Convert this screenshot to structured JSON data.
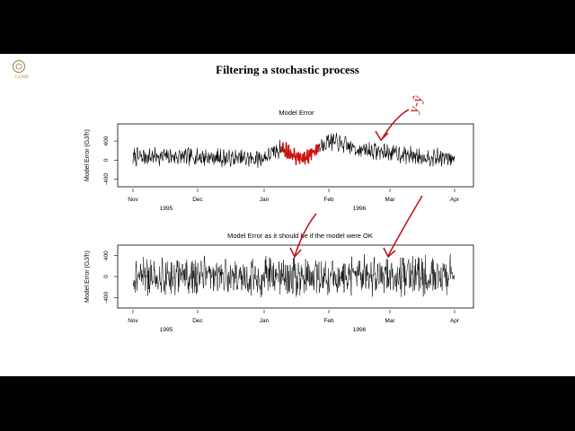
{
  "slide": {
    "title": "Filtering a stochastic process",
    "logo_label": "LUND",
    "annotation": "y-ŷ"
  },
  "chart_data": [
    {
      "type": "line",
      "title": "Model Error",
      "ylabel": "Model Error (GJ/h)",
      "yticks": [
        -400,
        0,
        400
      ],
      "ylim": [
        -560,
        760
      ],
      "xticks": [
        "Nov",
        "Dec",
        "Jan",
        "Feb",
        "Mar",
        "Apr"
      ],
      "xyears": [
        "1995",
        "1996"
      ],
      "xrange": [
        "1995-11-01",
        "1996-04-01"
      ],
      "series": [
        {
          "values_by_half_month": [
            {
              "x": "1995-11-01",
              "y": 60
            },
            {
              "x": "1995-11-15",
              "y": 80
            },
            {
              "x": "1995-12-01",
              "y": 70
            },
            {
              "x": "1995-12-15",
              "y": 40
            },
            {
              "x": "1996-01-01",
              "y": 30
            },
            {
              "x": "1996-01-10",
              "y": 250
            },
            {
              "x": "1996-01-20",
              "y": 10
            },
            {
              "x": "1996-02-01",
              "y": 420
            },
            {
              "x": "1996-02-15",
              "y": 230
            },
            {
              "x": "1996-03-01",
              "y": 160
            },
            {
              "x": "1996-03-15",
              "y": 80
            },
            {
              "x": "1996-04-01",
              "y": 30
            }
          ]
        }
      ],
      "highlight": {
        "from": "1996-01-10",
        "to": "1996-01-28",
        "color": "#cc1111"
      }
    },
    {
      "type": "line",
      "title": "Model Error as it should be if the model were OK",
      "ylabel": "Model Error (GJ/h)",
      "yticks": [
        -400,
        0,
        400
      ],
      "ylim": [
        -600,
        600
      ],
      "xticks": [
        "Nov",
        "Dec",
        "Jan",
        "Feb",
        "Mar",
        "Apr"
      ],
      "xyears": [
        "1995",
        "1996"
      ],
      "xrange": [
        "1995-11-01",
        "1996-04-01"
      ],
      "series": [
        {
          "mean": 0,
          "spread": 400
        }
      ]
    }
  ],
  "colors": {
    "ink": "#000000",
    "annotation": "#c01822",
    "logo": "#9a7b3c"
  }
}
